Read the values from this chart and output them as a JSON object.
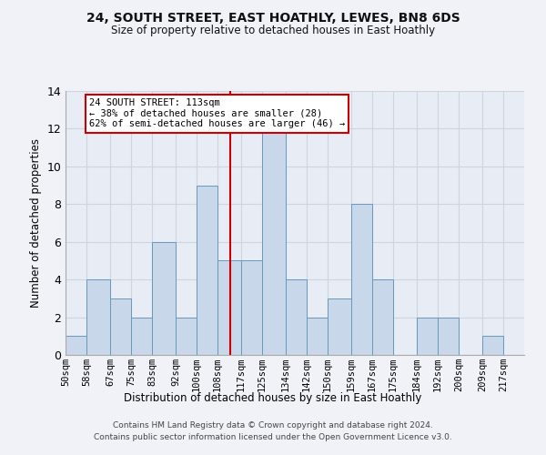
{
  "title": "24, SOUTH STREET, EAST HOATHLY, LEWES, BN8 6DS",
  "subtitle": "Size of property relative to detached houses in East Hoathly",
  "xlabel": "Distribution of detached houses by size in East Hoathly",
  "ylabel": "Number of detached properties",
  "footnote1": "Contains HM Land Registry data © Crown copyright and database right 2024.",
  "footnote2": "Contains public sector information licensed under the Open Government Licence v3.0.",
  "bin_labels": [
    "50sqm",
    "58sqm",
    "67sqm",
    "75sqm",
    "83sqm",
    "92sqm",
    "100sqm",
    "108sqm",
    "117sqm",
    "125sqm",
    "134sqm",
    "142sqm",
    "150sqm",
    "159sqm",
    "167sqm",
    "175sqm",
    "184sqm",
    "192sqm",
    "200sqm",
    "209sqm",
    "217sqm"
  ],
  "bar_heights": [
    1,
    4,
    3,
    2,
    6,
    2,
    9,
    5,
    5,
    12,
    4,
    2,
    3,
    8,
    4,
    0,
    2,
    2,
    0,
    1,
    0
  ],
  "bar_color": "#c8d8ea",
  "bar_edge_color": "#6699bb",
  "vline_x": 113,
  "bin_edges": [
    50,
    58,
    67,
    75,
    83,
    92,
    100,
    108,
    117,
    125,
    134,
    142,
    150,
    159,
    167,
    175,
    184,
    192,
    200,
    209,
    217,
    225
  ],
  "ylim": [
    0,
    14
  ],
  "yticks": [
    0,
    2,
    4,
    6,
    8,
    10,
    12,
    14
  ],
  "annotation_line1": "24 SOUTH STREET: 113sqm",
  "annotation_line2": "← 38% of detached houses are smaller (28)",
  "annotation_line3": "62% of semi-detached houses are larger (46) →",
  "annotation_box_color": "#ffffff",
  "annotation_box_edge": "#cc0000",
  "vline_color": "#cc0000",
  "grid_color": "#ccd5e0",
  "bg_color": "#e8ecf5",
  "fig_bg_color": "#f0f2f8"
}
